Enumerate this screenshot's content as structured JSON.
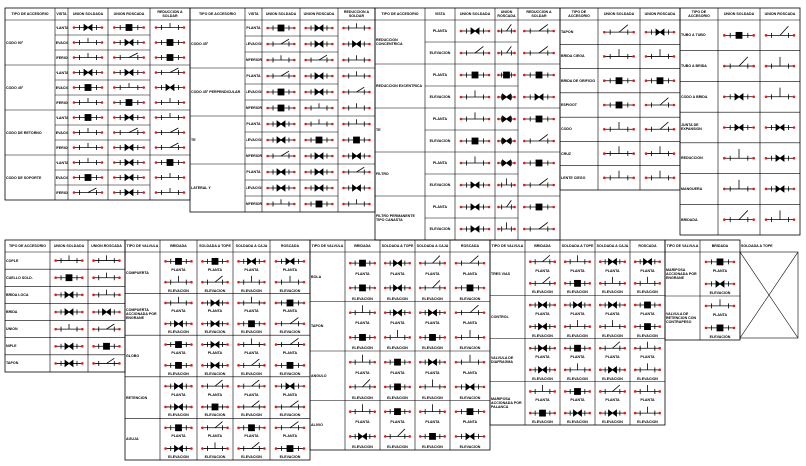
{
  "tables": [
    {
      "headers": [
        "TIPO DE ACCESORIO",
        "VISTA",
        "UNION SOLDADA",
        "UNION ROSCADA",
        "REDUCCION A SOLDAR"
      ],
      "rows": [
        "CODO 90°",
        "CODO 45°",
        "CODO DE RETORNO",
        "CODO DE SOPORTE"
      ],
      "views": [
        "PLANTA",
        "ELEVACION",
        "INFERIOR"
      ]
    },
    {
      "headers": [
        "TIPO DE ACCESORIO",
        "VISTA",
        "UNION SOLDADA",
        "UNION ROSCADA",
        "REDUCCION A SOLDAR"
      ],
      "rows": [
        "CODO 45°",
        "CODO 45° PERPENDICULAR",
        "TE",
        "LATERAL Y"
      ],
      "views": [
        "PLANTA",
        "ELEVACION",
        "INFERIOR"
      ]
    },
    {
      "headers": [
        "TIPO DE ACCESORIO",
        "VISTA",
        "UNION SOLDADA",
        "UNION ROSCADA",
        "REDUCCION A SOLDAR"
      ],
      "rows": [
        "REDUCCION CONCENTRICA",
        "REDUCCION EXCENTRICA",
        "TE",
        "FILTRO",
        "FILTRO PERMANENTE TIPO CANASTA"
      ],
      "views": [
        "PLANTA",
        "ELEVACION"
      ]
    },
    {
      "headers": [
        "TIPO DE ACCESORIO",
        "UNION SOLDADA",
        "UNION ROSCADA"
      ],
      "rows": [
        "TAPON",
        "BRIDA CIEGA",
        "BRIDA DE ORIFICIO",
        "ESPIGOT",
        "CODO",
        "CRUZ",
        "LENTE CIEGO"
      ],
      "views": []
    },
    {
      "headers": [
        "TIPO DE ACCESORIO",
        "UNION SOLDADA",
        "UNION ROSCADA"
      ],
      "rows": [
        "TUBO A TUBO",
        "TUBO A BRIDA",
        "CODO A BRIDA",
        "JUNTA DE EXPANSION",
        "REDUCCION",
        "MANGUERA",
        "BRIDADA"
      ],
      "views": []
    },
    {
      "headers": [
        "TIPO DE ACCESORIO",
        "UNION SOLDADA",
        "UNION ROSCADA"
      ],
      "rows": [
        "COPLE",
        "CUELLO SOLD.",
        "BRIDA LOCA",
        "BRIDA",
        "UNION",
        "NIPLE",
        "TAPON"
      ],
      "views": []
    },
    {
      "headers": [
        "TIPO DE VALVULA",
        "BRIDADA",
        "SOLDADA A TOPE",
        "SOLDADA A CAJA",
        "ROSCADA"
      ],
      "rows": [
        "COMPUERTA",
        "COMPUERTA ACCIONADA POR ENGRANE",
        "GLOBO",
        "RETENCION",
        "AGUJA"
      ],
      "views": [
        "PLANTA",
        "ELEVACION"
      ]
    },
    {
      "headers": [
        "TIPO DE VALVULA",
        "BRIDADA",
        "SOLDADA A TOPE",
        "SOLDADA A CAJA",
        "ROSCADA"
      ],
      "rows": [
        "BOLA",
        "TAPON",
        "ANGULO",
        "ALIVIO"
      ],
      "views": [
        "PLANTA",
        "ELEVACION"
      ]
    },
    {
      "headers": [
        "TIPO DE VALVULA",
        "BRIDADA",
        "SOLDADA A TOPE",
        "SOLDADA A CAJA",
        "ROSCADA"
      ],
      "rows": [
        "TRES VIAS",
        "CONTROL",
        "VALVULA DE DIAFRAGMA",
        "MARIPOSA ACCIONADA POR PALANCA"
      ],
      "views": [
        "PLANTA",
        "ELEVACION"
      ]
    },
    {
      "headers": [
        "TIPO DE VALVULA",
        "BRIDADA",
        "SOLDADA A TOPE"
      ],
      "rows": [
        "MARIPOSA ACCIONADA POR ENGRANE",
        "VALVULA DE RETENCION CON CONTRAPESO"
      ],
      "views": [
        "PLANTA",
        "ELEVACION"
      ]
    }
  ]
}
